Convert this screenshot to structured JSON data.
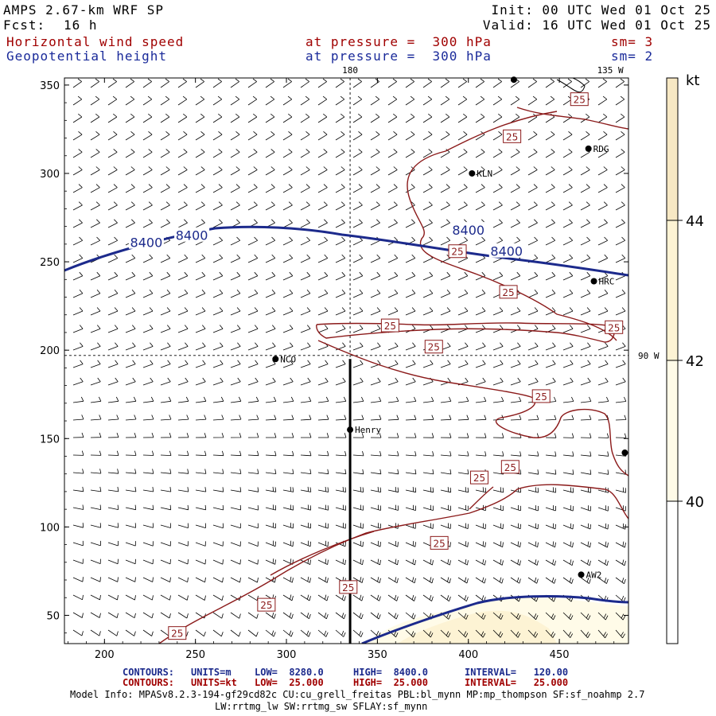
{
  "header": {
    "model": "AMPS 2.67-km WRF SP",
    "fcst_label": "Fcst:",
    "fcst_value": "16 h",
    "init": "Init: 00 UTC Wed 01 Oct 25",
    "valid": "Valid: 16 UTC Wed 01 Oct 25",
    "field1": "Horizontal wind speed",
    "field1_level": "at pressure =  300 hPa",
    "field1_sm": "sm= 3",
    "field2": "Geopotential height",
    "field2_level": "at pressure =  300 hPa",
    "field2_sm": "sm= 2"
  },
  "colors": {
    "speed_contour": "#8b1a1a",
    "height_contour": "#1c2a8c",
    "shade_40_42": "#fffbe8",
    "shade_42_44": "#fdf3d4",
    "shade_44_plus": "#f7e8c4"
  },
  "chart_data": {
    "type": "contour",
    "title": "",
    "xlim": [
      178,
      488
    ],
    "ylim": [
      34,
      354
    ],
    "x_ticks": [
      200,
      250,
      300,
      350,
      400,
      450
    ],
    "y_ticks": [
      50,
      100,
      150,
      200,
      250,
      300,
      350
    ],
    "grid_labels": [
      {
        "text": "180",
        "x": 335,
        "y": 354
      },
      {
        "text": "135 W",
        "x": 478,
        "y": 354
      },
      {
        "text": "90 W",
        "x": 488,
        "y": 197
      }
    ],
    "stations": [
      {
        "name": "RDG",
        "x": 466,
        "y": 314
      },
      {
        "name": "KLN",
        "x": 402,
        "y": 300
      },
      {
        "name": "HRC",
        "x": 469,
        "y": 239
      },
      {
        "name": "NCO",
        "x": 294,
        "y": 195
      },
      {
        "name": "Henry",
        "x": 335,
        "y": 155
      },
      {
        "name": "AW2",
        "x": 462,
        "y": 73
      },
      {
        "name": "",
        "x": 486,
        "y": 142
      },
      {
        "name": "",
        "x": 425,
        "y": 353
      }
    ],
    "height_contours": [
      {
        "value": 8400,
        "labels": [
          {
            "text": "8400",
            "x": 223,
            "y": 261
          },
          {
            "text": "8400",
            "x": 248,
            "y": 265
          },
          {
            "text": "8400",
            "x": 400,
            "y": 268
          },
          {
            "text": "8400",
            "x": 421,
            "y": 256
          }
        ]
      }
    ],
    "speed_contours": [
      {
        "value": 25,
        "labels": [
          {
            "x": 461,
            "y": 342
          },
          {
            "x": 424,
            "y": 321
          },
          {
            "x": 394,
            "y": 256
          },
          {
            "x": 422,
            "y": 233
          },
          {
            "x": 480,
            "y": 213
          },
          {
            "x": 357,
            "y": 214
          },
          {
            "x": 381,
            "y": 202
          },
          {
            "x": 440,
            "y": 174
          },
          {
            "x": 423,
            "y": 134
          },
          {
            "x": 406,
            "y": 128
          },
          {
            "x": 384,
            "y": 91
          },
          {
            "x": 334,
            "y": 66
          },
          {
            "x": 289,
            "y": 56
          },
          {
            "x": 240,
            "y": 40
          }
        ]
      }
    ],
    "shading": {
      "units": "kt",
      "levels": [
        40,
        42,
        44
      ]
    },
    "cross_section_line": {
      "x": 335,
      "y_from": 34,
      "y_to": 195
    },
    "legend": "colorbar right",
    "grid": false,
    "footer": {
      "line1": {
        "label": "CONTOURS:",
        "units": "UNITS=m",
        "low": "LOW=  8280.0",
        "high": "HIGH=  8400.0",
        "interval": "INTERVAL=   120.00"
      },
      "line2": {
        "label": "CONTOURS:",
        "units": "UNITS=kt",
        "low": "LOW=  25.000",
        "high": "HIGH=  25.000",
        "interval": "INTERVAL=   25.000"
      }
    },
    "model_info_1": "Model Info: MPASv8.2.3-194-gf29cd82c CU:cu_grell_freitas PBL:bl_mynn MP:mp_thompson SF:sf_noahmp 2.7",
    "model_info_2": "LW:rrtmg_lw SW:rrtmg_sw SFLAY:sf_mynn"
  }
}
